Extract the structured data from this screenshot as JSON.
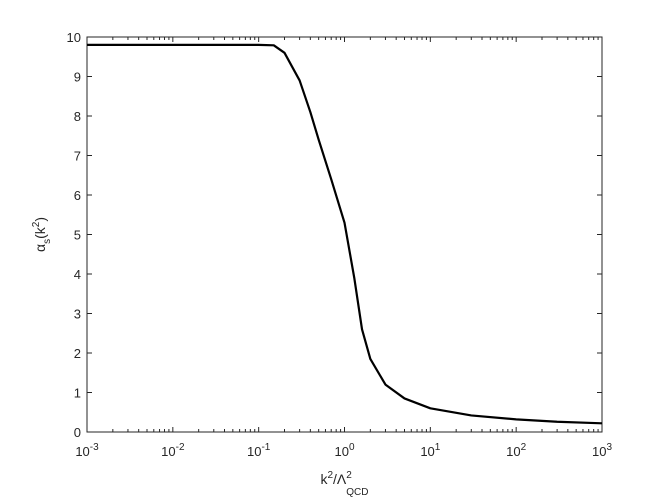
{
  "chart_data": {
    "type": "line",
    "xlabel": "k^{2}/Λ^{2}_{QCD}",
    "ylabel": "α_{s}(k^{2})",
    "x": [
      0.001,
      0.01,
      0.1,
      0.15,
      0.2,
      0.3,
      0.4,
      0.5,
      0.7,
      1.0,
      1.3,
      1.6,
      2,
      3,
      5,
      10,
      30,
      100,
      300,
      1000
    ],
    "series": [
      {
        "color": "#000000",
        "values": [
          9.8,
          9.8,
          9.8,
          9.79,
          9.6,
          8.9,
          8.1,
          7.4,
          6.4,
          5.3,
          3.9,
          2.6,
          1.85,
          1.2,
          0.85,
          0.6,
          0.42,
          0.32,
          0.26,
          0.22
        ]
      }
    ],
    "xscale": "log",
    "xlim": [
      0.001,
      1000
    ],
    "ylim": [
      0,
      10
    ],
    "xticks": [
      {
        "value": 0.001,
        "label": "10^{-3}"
      },
      {
        "value": 0.01,
        "label": "10^{-2}"
      },
      {
        "value": 0.1,
        "label": "10^{-1}"
      },
      {
        "value": 1,
        "label": "10^{0}"
      },
      {
        "value": 10,
        "label": "10^{1}"
      },
      {
        "value": 100,
        "label": "10^{2}"
      },
      {
        "value": 1000,
        "label": "10^{3}"
      }
    ],
    "yticks": [
      0,
      1,
      2,
      3,
      4,
      5,
      6,
      7,
      8,
      9,
      10
    ]
  }
}
